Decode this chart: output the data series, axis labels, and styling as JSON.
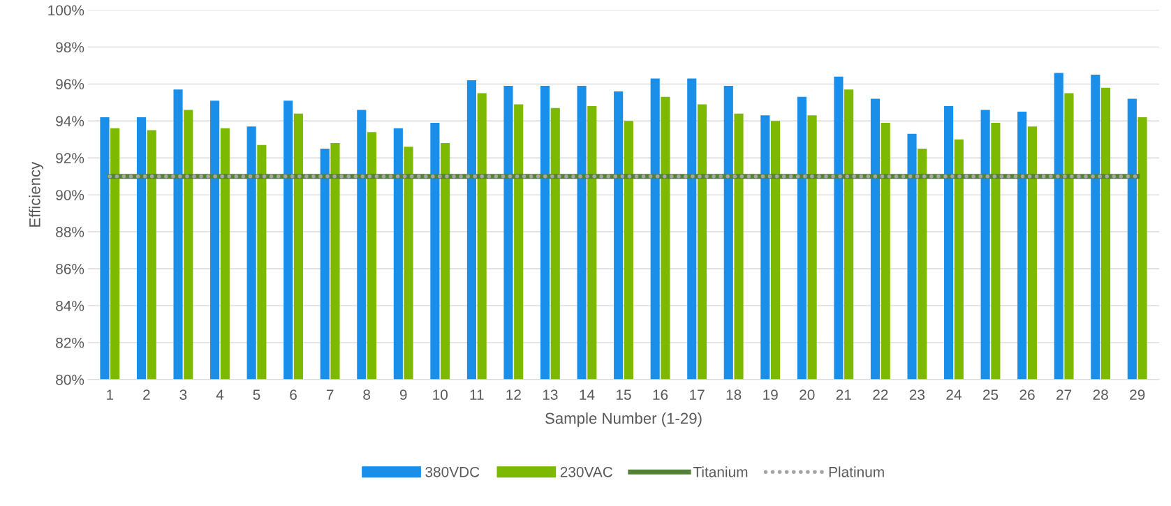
{
  "chart_data": {
    "type": "bar",
    "xlabel": "Sample Number (1-29)",
    "ylabel": "Efficiency",
    "categories": [
      "1",
      "2",
      "3",
      "4",
      "5",
      "6",
      "7",
      "8",
      "9",
      "10",
      "11",
      "12",
      "13",
      "14",
      "15",
      "16",
      "17",
      "18",
      "19",
      "20",
      "21",
      "22",
      "23",
      "24",
      "25",
      "26",
      "27",
      "28",
      "29"
    ],
    "series": [
      {
        "name": "380VDC",
        "color": "#1a8fea",
        "values": [
          94.2,
          94.2,
          95.7,
          95.1,
          93.7,
          95.1,
          92.5,
          94.6,
          93.6,
          93.9,
          96.2,
          95.9,
          95.9,
          95.9,
          95.6,
          96.3,
          96.3,
          95.9,
          94.3,
          95.3,
          96.4,
          95.2,
          93.3,
          94.8,
          94.6,
          94.5,
          96.6,
          96.5,
          95.2
        ]
      },
      {
        "name": "230VAC",
        "color": "#7cb900",
        "values": [
          93.6,
          93.5,
          94.6,
          93.6,
          92.7,
          94.4,
          92.8,
          93.4,
          92.6,
          92.8,
          95.5,
          94.9,
          94.7,
          94.8,
          94.0,
          95.3,
          94.9,
          94.4,
          94.0,
          94.3,
          95.7,
          93.9,
          92.5,
          93.0,
          93.9,
          93.7,
          95.5,
          95.8,
          94.2
        ]
      },
      {
        "name": "Titanium",
        "type": "line",
        "line_style": "solid",
        "color": "#548235",
        "values": [
          91,
          91,
          91,
          91,
          91,
          91,
          91,
          91,
          91,
          91,
          91,
          91,
          91,
          91,
          91,
          91,
          91,
          91,
          91,
          91,
          91,
          91,
          91,
          91,
          91,
          91,
          91,
          91,
          91
        ]
      },
      {
        "name": "Platinum",
        "type": "line",
        "line_style": "dotted",
        "color": "#a5a5a5",
        "values": [
          91,
          91,
          91,
          91,
          91,
          91,
          91,
          91,
          91,
          91,
          91,
          91,
          91,
          91,
          91,
          91,
          91,
          91,
          91,
          91,
          91,
          91,
          91,
          91,
          91,
          91,
          91,
          91,
          91
        ]
      }
    ],
    "ylim": [
      80,
      100
    ],
    "yticks": [
      {
        "value": 80,
        "label": "80%"
      },
      {
        "value": 82,
        "label": "82%"
      },
      {
        "value": 84,
        "label": "84%"
      },
      {
        "value": 86,
        "label": "86%"
      },
      {
        "value": 88,
        "label": "88%"
      },
      {
        "value": 90,
        "label": "90%"
      },
      {
        "value": 92,
        "label": "92%"
      },
      {
        "value": 94,
        "label": "94%"
      },
      {
        "value": 96,
        "label": "96%"
      },
      {
        "value": 98,
        "label": "98%"
      },
      {
        "value": 100,
        "label": "100%"
      }
    ],
    "grid": "y",
    "legend": "bottom"
  }
}
